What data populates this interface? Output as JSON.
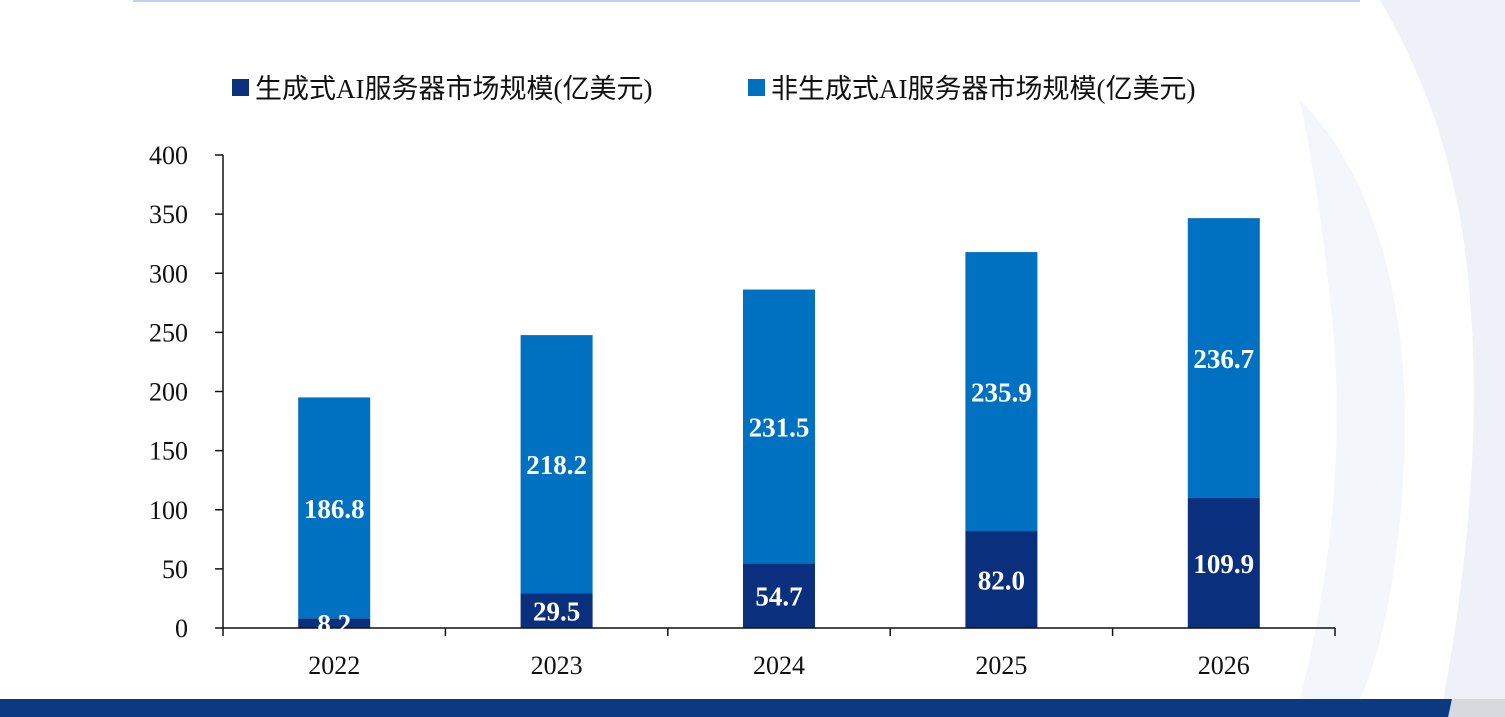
{
  "colors": {
    "generative": "#0a2f7c",
    "non_generative": "#0070c0",
    "axis": "#111111",
    "label": "#ffffff"
  },
  "chart_data": {
    "type": "bar",
    "stacked": true,
    "categories": [
      "2022",
      "2023",
      "2024",
      "2025",
      "2026"
    ],
    "series": [
      {
        "name": "生成式AI服务器市场规模(亿美元)",
        "values": [
          8.2,
          29.5,
          54.7,
          82.0,
          109.9
        ]
      },
      {
        "name": "非生成式AI服务器市场规模(亿美元)",
        "values": [
          186.8,
          218.2,
          231.5,
          235.9,
          236.7
        ]
      }
    ],
    "value_labels": [
      [
        "8.2",
        "29.5",
        "54.7",
        "82.0",
        "109.9"
      ],
      [
        "186.8",
        "218.2",
        "231.5",
        "235.9",
        "236.7"
      ]
    ],
    "ylim": [
      0,
      400
    ],
    "yticks": [
      "0",
      "50",
      "100",
      "150",
      "200",
      "250",
      "300",
      "350",
      "400"
    ],
    "legend": "top-center",
    "grid": false
  }
}
